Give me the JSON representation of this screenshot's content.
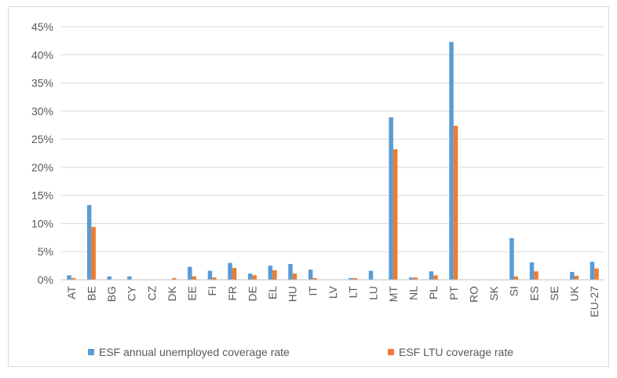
{
  "chart_data": {
    "type": "bar",
    "title": "",
    "xlabel": "",
    "ylabel": "",
    "ylim": [
      0,
      45
    ],
    "y_ticks": [
      "0%",
      "5%",
      "10%",
      "15%",
      "20%",
      "25%",
      "30%",
      "35%",
      "40%",
      "45%"
    ],
    "y_tick_values": [
      0,
      5,
      10,
      15,
      20,
      25,
      30,
      35,
      40,
      45
    ],
    "grid": "horizontal",
    "legend_position": "bottom",
    "categories": [
      "AT",
      "BE",
      "BG",
      "CY",
      "CZ",
      "DK",
      "EE",
      "FI",
      "FR",
      "DE",
      "EL",
      "HU",
      "IT",
      "LV",
      "LT",
      "LU",
      "MT",
      "NL",
      "PL",
      "PT",
      "RO",
      "SK",
      "SI",
      "ES",
      "SE",
      "UK",
      "EU-27"
    ],
    "series": [
      {
        "name": "ESF annual unemployed coverage rate",
        "color": "#5B9BD5",
        "values": [
          0.8,
          13.3,
          0.6,
          0.6,
          0.0,
          0.0,
          2.3,
          1.6,
          3.0,
          1.1,
          2.5,
          2.8,
          1.8,
          0.0,
          0.3,
          1.6,
          28.9,
          0.4,
          1.5,
          42.3,
          0.0,
          0.0,
          7.4,
          3.1,
          0.0,
          1.4,
          3.2
        ]
      },
      {
        "name": "ESF LTU coverage rate",
        "color": "#ED7D31",
        "values": [
          0.3,
          9.4,
          0.0,
          0.0,
          0.0,
          0.3,
          0.6,
          0.4,
          2.1,
          0.8,
          1.7,
          1.1,
          0.3,
          0.0,
          0.3,
          0.0,
          23.2,
          0.4,
          0.8,
          27.4,
          0.0,
          0.0,
          0.6,
          1.5,
          0.0,
          0.7,
          2.0
        ]
      }
    ]
  }
}
